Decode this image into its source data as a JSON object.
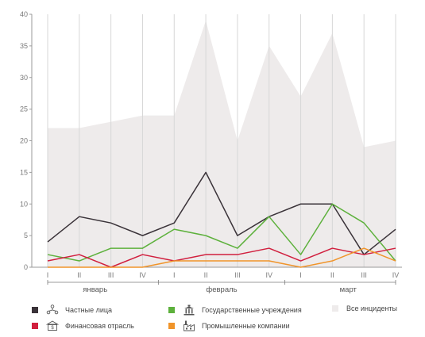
{
  "chart_data": {
    "type": "line",
    "categories": [
      "I",
      "II",
      "III",
      "IV",
      "I",
      "II",
      "III",
      "IV",
      "I",
      "II",
      "III",
      "IV"
    ],
    "groups": [
      {
        "label": "январь",
        "span": [
          0,
          3
        ]
      },
      {
        "label": "февраль",
        "span": [
          4,
          7
        ]
      },
      {
        "label": "март",
        "span": [
          8,
          11
        ]
      }
    ],
    "ylim": [
      0,
      40
    ],
    "yticks": [
      0,
      5,
      10,
      15,
      20,
      25,
      30,
      35,
      40
    ],
    "grid": "vertical",
    "series": [
      {
        "name": "Частные лица",
        "type": "line",
        "color": "#3a3339",
        "values": [
          4,
          8,
          7,
          5,
          7,
          15,
          5,
          8,
          10,
          10,
          2,
          6
        ]
      },
      {
        "name": "Государственные учреждения",
        "type": "line",
        "color": "#5db13c",
        "values": [
          2,
          1,
          3,
          3,
          6,
          5,
          3,
          8,
          2,
          10,
          7,
          1
        ]
      },
      {
        "name": "Все инциденты",
        "type": "area",
        "color": "#eeebeb",
        "values": [
          22,
          22,
          23,
          24,
          24,
          39,
          20,
          35,
          27,
          37,
          19,
          20
        ]
      },
      {
        "name": "Финансовая отрасль",
        "type": "line",
        "color": "#d11f3e",
        "values": [
          1,
          2,
          0,
          2,
          1,
          2,
          2,
          3,
          1,
          3,
          2,
          3
        ]
      },
      {
        "name": "Промышленные компании",
        "type": "line",
        "color": "#f0942a",
        "values": [
          0,
          0,
          0,
          0,
          1,
          1,
          1,
          1,
          0,
          1,
          3,
          1
        ]
      }
    ]
  },
  "legend": {
    "item1": "Частные лица",
    "item2": "Государственные учреждения",
    "item3": "Все инциденты",
    "item4": "Финансовая отрасль",
    "item5": "Промышленные компании"
  },
  "icons": {
    "item1": "people-network-icon",
    "item2": "government-building-icon",
    "item4": "bank-building-icon",
    "item5": "factory-icon"
  }
}
